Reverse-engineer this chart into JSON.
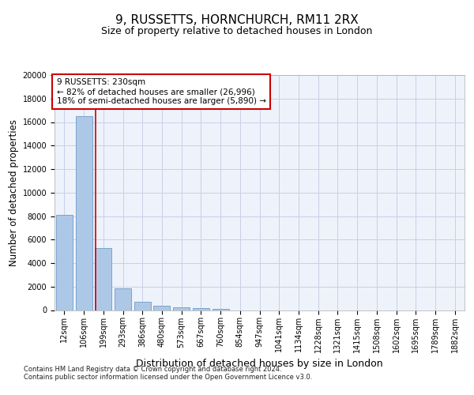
{
  "title": "9, RUSSETTS, HORNCHURCH, RM11 2RX",
  "subtitle": "Size of property relative to detached houses in London",
  "xlabel": "Distribution of detached houses by size in London",
  "ylabel": "Number of detached properties",
  "bar_color": "#adc8e6",
  "bar_edge_color": "#5a8fc0",
  "bg_color": "#eef2fa",
  "grid_color": "#c8cfe8",
  "annotation_text": "9 RUSSETTS: 230sqm\n← 82% of detached houses are smaller (26,996)\n18% of semi-detached houses are larger (5,890) →",
  "vline_x_index": 1.6,
  "vline_color": "#cc0000",
  "categories": [
    "12sqm",
    "106sqm",
    "199sqm",
    "293sqm",
    "386sqm",
    "480sqm",
    "573sqm",
    "667sqm",
    "760sqm",
    "854sqm",
    "947sqm",
    "1041sqm",
    "1134sqm",
    "1228sqm",
    "1321sqm",
    "1415sqm",
    "1508sqm",
    "1602sqm",
    "1695sqm",
    "1789sqm",
    "1882sqm"
  ],
  "values": [
    8100,
    16500,
    5300,
    1850,
    700,
    350,
    250,
    180,
    130,
    0,
    0,
    0,
    0,
    0,
    0,
    0,
    0,
    0,
    0,
    0,
    0
  ],
  "ylim": [
    0,
    20000
  ],
  "yticks": [
    0,
    2000,
    4000,
    6000,
    8000,
    10000,
    12000,
    14000,
    16000,
    18000,
    20000
  ],
  "footer_text": "Contains HM Land Registry data © Crown copyright and database right 2024.\nContains public sector information licensed under the Open Government Licence v3.0.",
  "title_fontsize": 11,
  "subtitle_fontsize": 9,
  "axis_label_fontsize": 8.5,
  "tick_fontsize": 7,
  "annotation_fontsize": 7.5
}
